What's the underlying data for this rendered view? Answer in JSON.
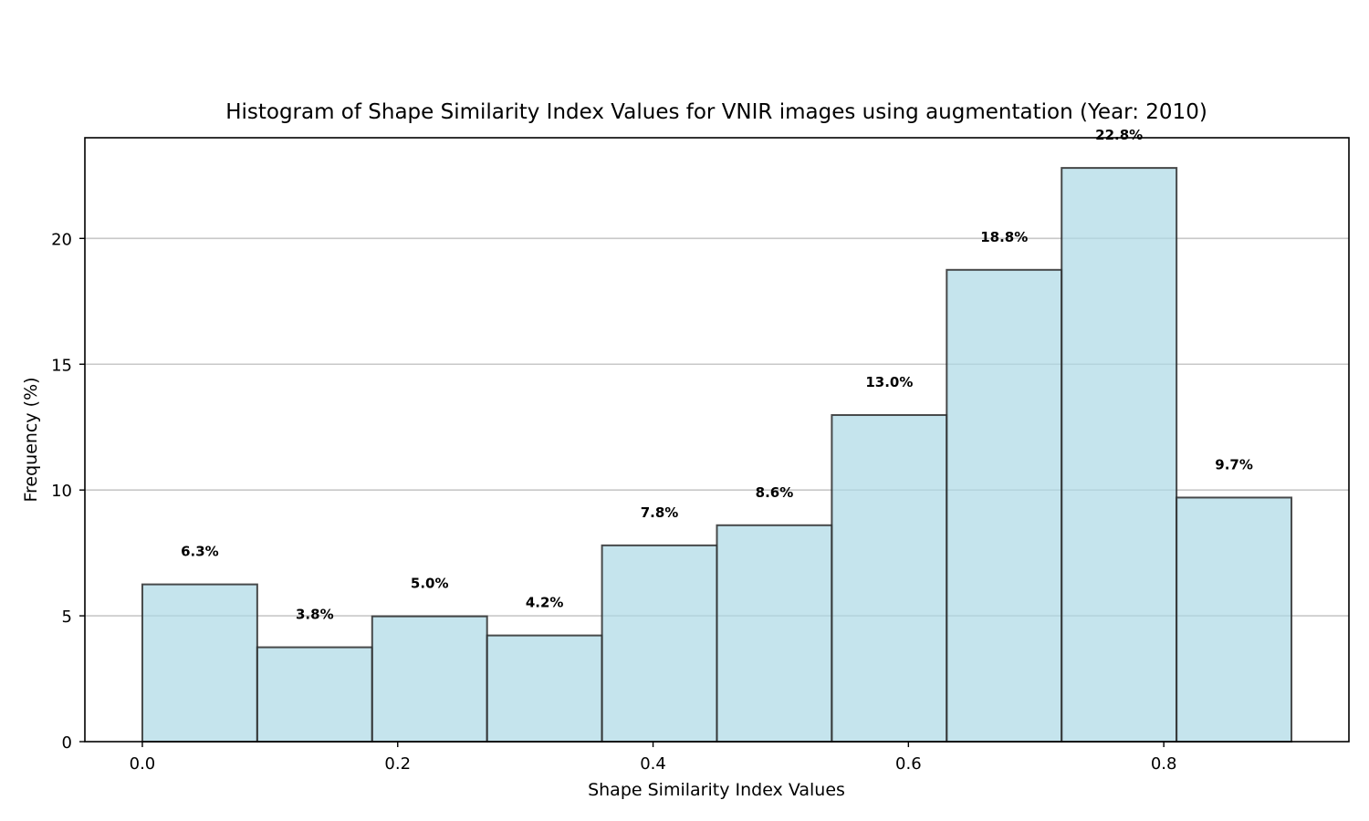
{
  "chart_data": {
    "type": "bar",
    "title": "Histogram of Shape Similarity Index Values for VNIR images using augmentation (Year: 2010)",
    "xlabel": "Shape Similarity Index Values",
    "ylabel": "Frequency (%)",
    "bin_edges": [
      0.0,
      0.09,
      0.18,
      0.27,
      0.36,
      0.45,
      0.54,
      0.63,
      0.72,
      0.81,
      0.9
    ],
    "values": [
      6.25,
      3.75,
      4.98,
      4.22,
      7.8,
      8.6,
      12.98,
      18.75,
      22.8,
      9.7
    ],
    "data_labels": [
      "6.3%",
      "3.8%",
      "5.0%",
      "4.2%",
      "7.8%",
      "8.6%",
      "13.0%",
      "18.8%",
      "22.8%",
      "9.7%"
    ],
    "xlim": [
      -0.045,
      0.945
    ],
    "ylim": [
      0,
      24
    ],
    "xticks": [
      0.0,
      0.2,
      0.4,
      0.6,
      0.8
    ],
    "xtick_labels": [
      "0.0",
      "0.2",
      "0.4",
      "0.6",
      "0.8"
    ],
    "yticks": [
      0,
      5,
      10,
      15,
      20
    ],
    "ytick_labels": [
      "0",
      "5",
      "10",
      "15",
      "20"
    ],
    "grid": "y",
    "colors": {
      "bar_fill": "#add8e6",
      "bar_edge": "#2b2b2b",
      "grid": "#c8c8c8"
    }
  }
}
